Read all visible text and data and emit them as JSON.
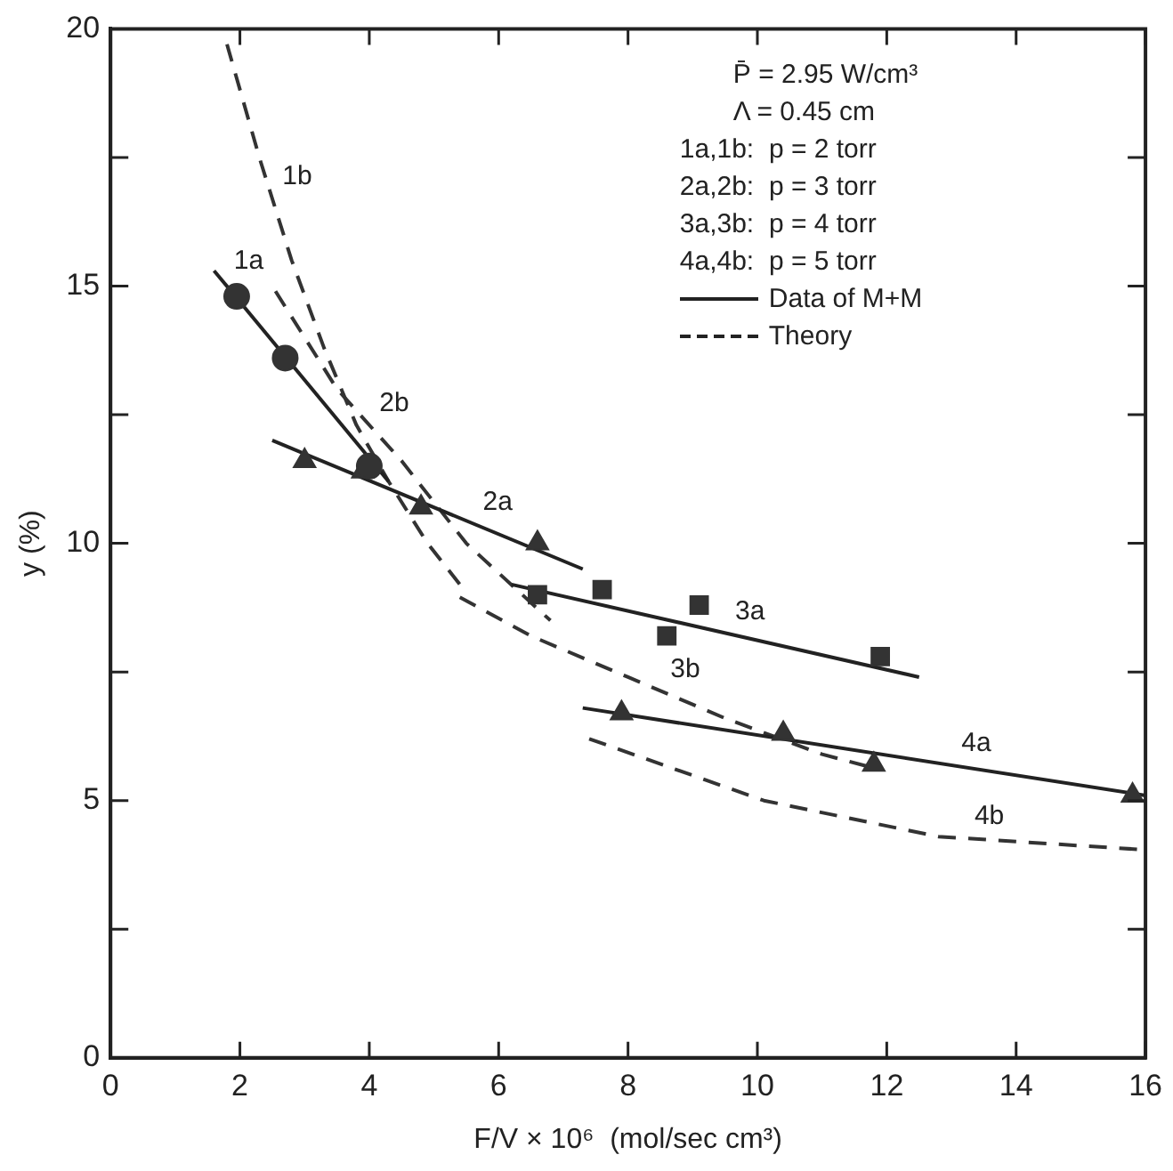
{
  "chart_data": {
    "type": "line",
    "xlabel": "F/V × 10⁶  (mol/sec cm³)",
    "ylabel": "y (%)",
    "xlim": [
      0,
      16
    ],
    "xticks": [
      0,
      2,
      4,
      6,
      8,
      10,
      12,
      14,
      16
    ],
    "ylim": [
      0,
      20
    ],
    "yticks": [
      0,
      {
        "value": 2.5,
        "label": null
      },
      5,
      {
        "value": 7.5,
        "label": null
      },
      10,
      {
        "value": 12.5,
        "label": null
      },
      15,
      {
        "value": 17.5,
        "label": null
      },
      20
    ],
    "grid": false,
    "legend": false,
    "series": [
      {
        "type": "scatter",
        "marker": "circle",
        "color": "#333333",
        "x": [
          1.95,
          2.7,
          4.0
        ],
        "values": [
          14.8,
          13.6,
          11.5
        ]
      },
      {
        "type": "scatter",
        "marker": "triangle",
        "color": "#333333",
        "x": [
          3.0,
          3.9,
          4.8,
          6.6
        ],
        "values": [
          11.6,
          11.4,
          10.7,
          10.0
        ]
      },
      {
        "type": "scatter",
        "marker": "square",
        "color": "#333333",
        "x": [
          6.6,
          7.6,
          8.6,
          9.1,
          11.9
        ],
        "values": [
          9.0,
          9.1,
          8.2,
          8.8,
          7.8
        ]
      },
      {
        "type": "scatter",
        "marker": "triangle",
        "color": "#333333",
        "x": [
          7.9,
          10.4,
          11.8,
          15.8
        ],
        "values": [
          6.7,
          6.3,
          5.7,
          5.1
        ]
      },
      {
        "type": "line",
        "marker": "none",
        "line_style": "solid",
        "color": "#222222",
        "x": [
          1.6,
          4.3
        ],
        "values": [
          15.3,
          11.2
        ]
      },
      {
        "type": "line",
        "marker": "none",
        "line_style": "solid",
        "color": "#222222",
        "x": [
          2.5,
          7.3
        ],
        "values": [
          12.0,
          9.5
        ]
      },
      {
        "type": "line",
        "marker": "none",
        "line_style": "solid",
        "color": "#222222",
        "x": [
          6.2,
          12.5
        ],
        "values": [
          9.2,
          7.4
        ]
      },
      {
        "type": "line",
        "marker": "none",
        "line_style": "solid",
        "color": "#222222",
        "x": [
          7.3,
          16.0
        ],
        "values": [
          6.8,
          5.1
        ]
      },
      {
        "type": "line",
        "marker": "none",
        "line_style": "dashed",
        "color": "#333333",
        "x": [
          1.8,
          2.3,
          2.8,
          3.3,
          3.8,
          4.3,
          4.9,
          5.4
        ],
        "values": [
          19.7,
          17.5,
          15.5,
          13.8,
          12.3,
          11.2,
          10.0,
          9.2
        ]
      },
      {
        "type": "line",
        "marker": "none",
        "line_style": "dashed",
        "color": "#333333",
        "x": [
          2.55,
          3.5,
          4.5,
          5.5,
          6.8
        ],
        "values": [
          14.9,
          13.0,
          11.6,
          10.0,
          8.5
        ]
      },
      {
        "type": "line",
        "marker": "none",
        "line_style": "dashed",
        "color": "#333333",
        "x": [
          5.4,
          6.5,
          8.0,
          9.5,
          11.0,
          11.9
        ],
        "values": [
          8.95,
          8.2,
          7.4,
          6.6,
          5.9,
          5.6
        ]
      },
      {
        "type": "line",
        "marker": "none",
        "line_style": "dashed",
        "color": "#333333",
        "x": [
          7.4,
          10.1,
          12.8,
          15.9
        ],
        "values": [
          6.2,
          5.0,
          4.3,
          4.05
        ]
      }
    ],
    "annotations": [
      "P̄ = 2.95 W/cm³",
      "Λ = 0.45 cm",
      "1a,1b:  p = 2 torr",
      "2a,2b:  p = 3 torr",
      "3a,3b:  p = 4 torr",
      "4a,4b:  p = 5 torr",
      "Data of M+M",
      "Theory",
      {
        "text": "1b",
        "x": 2.5,
        "y": 16.7
      },
      {
        "text": "1a",
        "x": 1.75,
        "y": 15.07
      },
      {
        "text": "2b",
        "x": 4.0,
        "y": 12.3
      },
      {
        "text": "2a",
        "x": 5.6,
        "y": 10.385
      },
      {
        "text": "3a",
        "x": 9.5,
        "y": 8.257
      },
      {
        "text": "3b",
        "x": 8.5,
        "y": 7.133
      },
      {
        "text": "4a",
        "x": 13.0,
        "y": 5.686
      },
      {
        "text": "4b",
        "x": 13.2,
        "y": 4.268
      }
    ]
  }
}
